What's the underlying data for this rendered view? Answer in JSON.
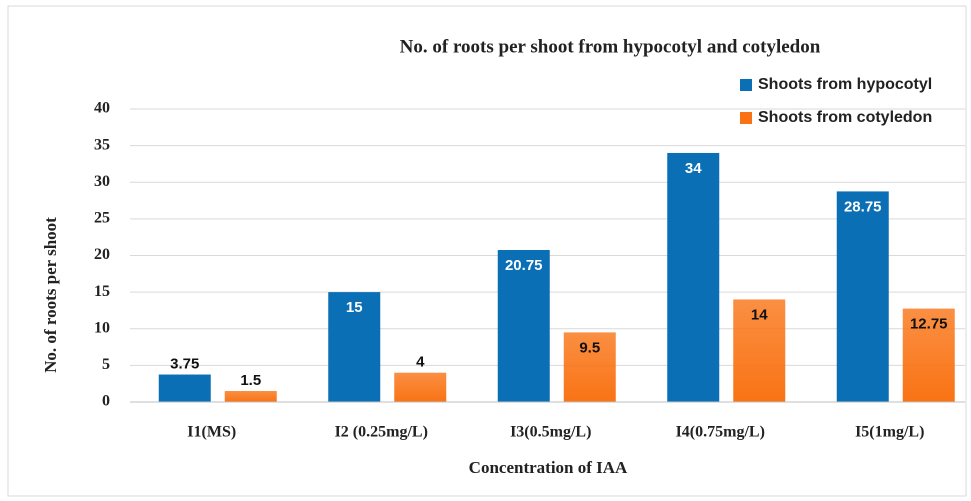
{
  "chart_data": {
    "type": "bar",
    "title": "No. of roots per shoot from hypocotyl and cotyledon",
    "xlabel": "Concentration of IAA",
    "ylabel": "No. of roots per shoot",
    "categories": [
      "I1(MS)",
      "I2 (0.25mg/L)",
      "I3(0.5mg/L)",
      "I4(0.75mg/L)",
      "I5(1mg/L)"
    ],
    "series": [
      {
        "name": "Shoots from hypocotyl",
        "color": "#0a6fb5",
        "values": [
          3.75,
          15,
          20.75,
          34,
          28.75
        ]
      },
      {
        "name": "Shoots from cotyledon",
        "color": "#f97314",
        "values": [
          1.5,
          4,
          9.5,
          14,
          12.75
        ]
      }
    ],
    "ylim": [
      0,
      40
    ],
    "yticks": [
      0,
      5,
      10,
      15,
      20,
      25,
      30,
      35,
      40
    ],
    "grid": true,
    "legend": "top-right"
  }
}
